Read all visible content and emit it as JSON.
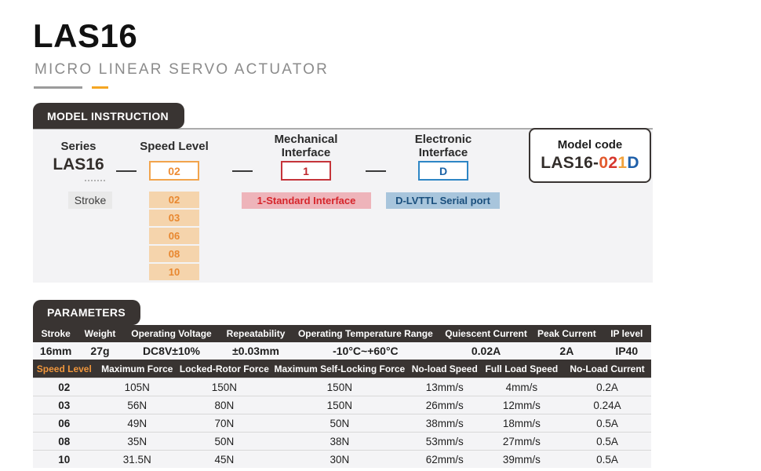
{
  "page": {
    "title": "LAS16",
    "subtitle": "MICRO LINEAR SERVO ACTUATOR"
  },
  "model_instruction": {
    "tab_label": "MODEL INSTRUCTION",
    "series": {
      "label": "Series",
      "value": "LAS16"
    },
    "speed_level": {
      "label": "Speed Level",
      "value": "02",
      "options": [
        "02",
        "03",
        "06",
        "08",
        "10"
      ]
    },
    "mechanical_interface": {
      "label_lines": [
        "Mechanical",
        "Interface"
      ],
      "value": "1",
      "badge": "1-Standard Interface"
    },
    "electronic_interface": {
      "label_lines": [
        "Electronic",
        "Interface"
      ],
      "value": "D",
      "badge": "D-LVTTL Serial port"
    },
    "stroke_label": "Stroke",
    "model_code": {
      "label": "Model code",
      "prefix": "LAS16-",
      "speed_digit_1": "0",
      "speed_digit_2": "2",
      "mech_digit": "1",
      "elec_digit": "D"
    }
  },
  "parameters": {
    "tab_label": "PARAMETERS",
    "general_table": {
      "headers": [
        "Stroke",
        "Weight",
        "Operating Voltage",
        "Repeatability",
        "Operating Temperature Range",
        "Quiescent Current",
        "Peak Current",
        "IP level"
      ],
      "row": [
        "16mm",
        "27g",
        "DC8V±10%",
        "±0.03mm",
        "-10°C~+60°C",
        "0.02A",
        "2A",
        "IP40"
      ]
    },
    "speed_table": {
      "headers": [
        "Speed Level",
        "Maximum Force",
        "Locked-Rotor Force",
        "Maximum Self-Locking Force",
        "No-load Speed",
        "Full Load Speed",
        "No-Load Current"
      ],
      "rows": [
        [
          "02",
          "105N",
          "150N",
          "150N",
          "13mm/s",
          "4mm/s",
          "0.2A"
        ],
        [
          "03",
          "56N",
          "80N",
          "150N",
          "26mm/s",
          "12mm/s",
          "0.24A"
        ],
        [
          "06",
          "49N",
          "70N",
          "50N",
          "38mm/s",
          "18mm/s",
          "0.5A"
        ],
        [
          "08",
          "35N",
          "50N",
          "38N",
          "53mm/s",
          "27mm/s",
          "0.5A"
        ],
        [
          "10",
          "31.5N",
          "45N",
          "30N",
          "62mm/s",
          "39mm/s",
          "0.5A"
        ]
      ]
    }
  },
  "colors": {
    "dark": "#393432",
    "panel_bg": "#F3F3F5",
    "accent_orange": "#F5A623",
    "orange_border": "#F2A44C",
    "orange_text": "#EE8C33",
    "orange_fill": "#F5D4AC",
    "red_border": "#C5343A",
    "red_badge_bg": "#EEB4BA",
    "red_badge_text": "#D6252B",
    "blue_border": "#2E86C5",
    "blue_badge_bg": "#A8C5DC",
    "blue_badge_text": "#1A4F7D",
    "code_char_colors": {
      "0": "#E25A2D",
      "2": "#D6372E",
      "1": "#F2A33C",
      "D": "#1E5FA9"
    }
  }
}
